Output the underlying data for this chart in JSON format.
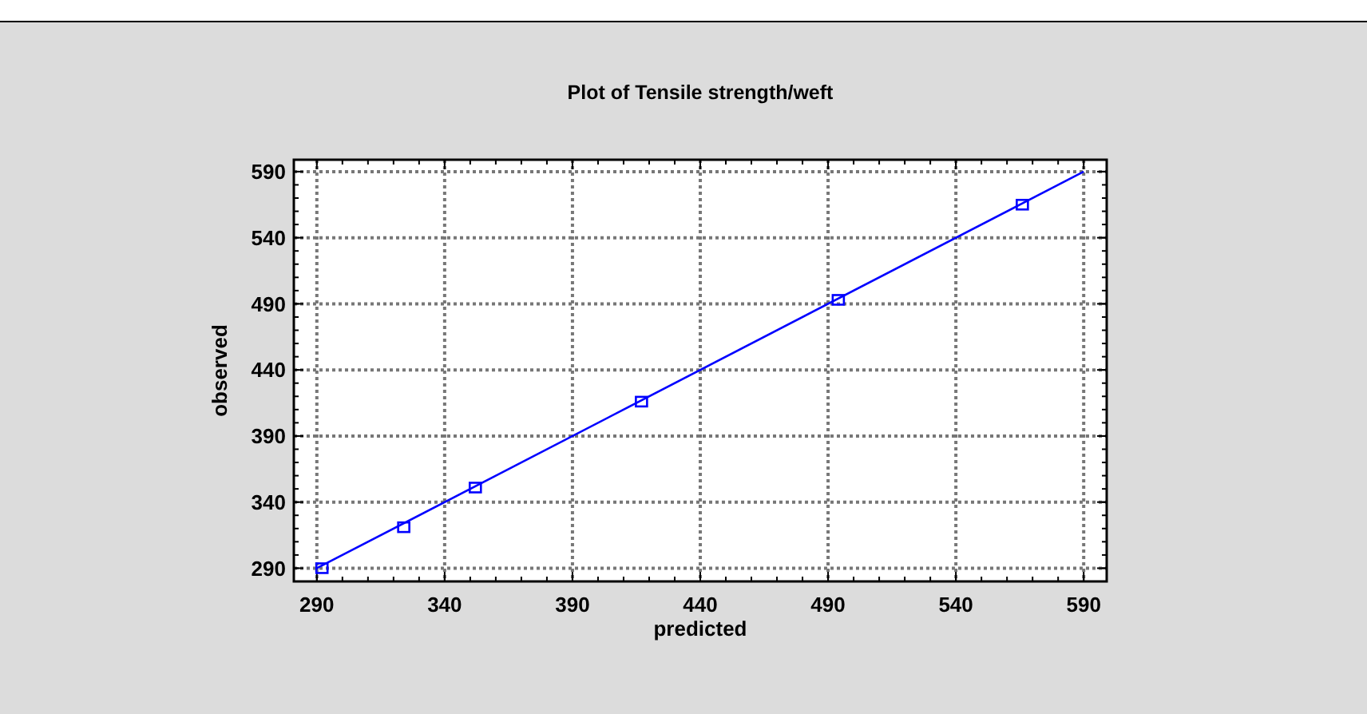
{
  "chart_data": {
    "type": "scatter",
    "title": "Plot of Tensile strength/weft",
    "xlabel": "predicted",
    "ylabel": "observed",
    "xlim": [
      281,
      599
    ],
    "ylim": [
      280,
      599
    ],
    "xticks": [
      290,
      340,
      390,
      440,
      490,
      540,
      590
    ],
    "yticks": [
      290,
      340,
      390,
      440,
      490,
      540,
      590
    ],
    "grid": true,
    "series": [
      {
        "color": "#0000ff",
        "marker": "square",
        "x": [
          292,
          324,
          352,
          417,
          494,
          566
        ],
        "values": [
          290,
          321,
          351,
          416,
          493,
          565
        ]
      },
      {
        "type": "line",
        "color": "#0000ff",
        "marker": "none",
        "x": [
          290,
          590
        ],
        "values": [
          290,
          590
        ]
      }
    ]
  }
}
